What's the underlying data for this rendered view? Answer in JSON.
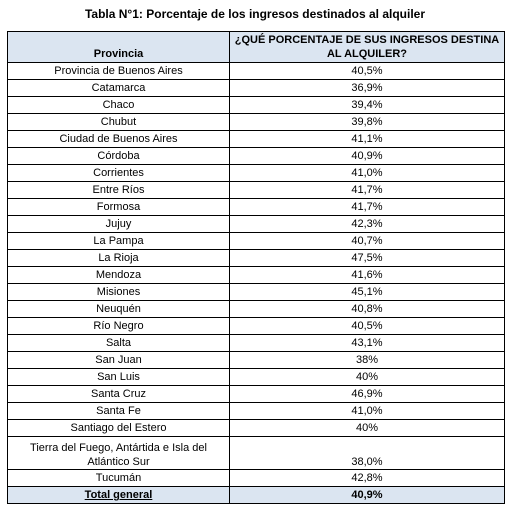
{
  "title": "Tabla N°1: Porcentaje de los ingresos destinados al alquiler",
  "headers": {
    "provincia": "Provincia",
    "porcentaje": "¿QUÉ PORCENTAJE DE SUS INGRESOS DESTINA AL ALQUILER?"
  },
  "rows": [
    {
      "provincia": "Provincia de Buenos Aires",
      "porcentaje": "40,5%"
    },
    {
      "provincia": "Catamarca",
      "porcentaje": "36,9%"
    },
    {
      "provincia": "Chaco",
      "porcentaje": "39,4%"
    },
    {
      "provincia": "Chubut",
      "porcentaje": "39,8%"
    },
    {
      "provincia": "Ciudad de Buenos Aires",
      "porcentaje": "41,1%"
    },
    {
      "provincia": "Córdoba",
      "porcentaje": "40,9%"
    },
    {
      "provincia": "Corrientes",
      "porcentaje": "41,0%"
    },
    {
      "provincia": "Entre Ríos",
      "porcentaje": "41,7%"
    },
    {
      "provincia": "Formosa",
      "porcentaje": "41,7%"
    },
    {
      "provincia": "Jujuy",
      "porcentaje": "42,3%"
    },
    {
      "provincia": "La Pampa",
      "porcentaje": "40,7%"
    },
    {
      "provincia": "La Rioja",
      "porcentaje": "47,5%"
    },
    {
      "provincia": "Mendoza",
      "porcentaje": "41,6%"
    },
    {
      "provincia": "Misiones",
      "porcentaje": "45,1%"
    },
    {
      "provincia": "Neuquén",
      "porcentaje": "40,8%"
    },
    {
      "provincia": "Río Negro",
      "porcentaje": "40,5%"
    },
    {
      "provincia": "Salta",
      "porcentaje": "43,1%"
    },
    {
      "provincia": "San Juan",
      "porcentaje": "38%"
    },
    {
      "provincia": "San Luis",
      "porcentaje": "40%"
    },
    {
      "provincia": "Santa Cruz",
      "porcentaje": "46,9%"
    },
    {
      "provincia": "Santa Fe",
      "porcentaje": "41,0%"
    },
    {
      "provincia": "Santiago del Estero",
      "porcentaje": "40%"
    },
    {
      "provincia": "Tierra del Fuego, Antártida e Isla del Atlántico Sur",
      "porcentaje": "38,0%"
    },
    {
      "provincia": "Tucumán",
      "porcentaje": "42,8%"
    }
  ],
  "total": {
    "label": "Total general",
    "value": "40,9%"
  },
  "colors": {
    "header_fill": "#dbe5f1",
    "border": "#000000"
  }
}
